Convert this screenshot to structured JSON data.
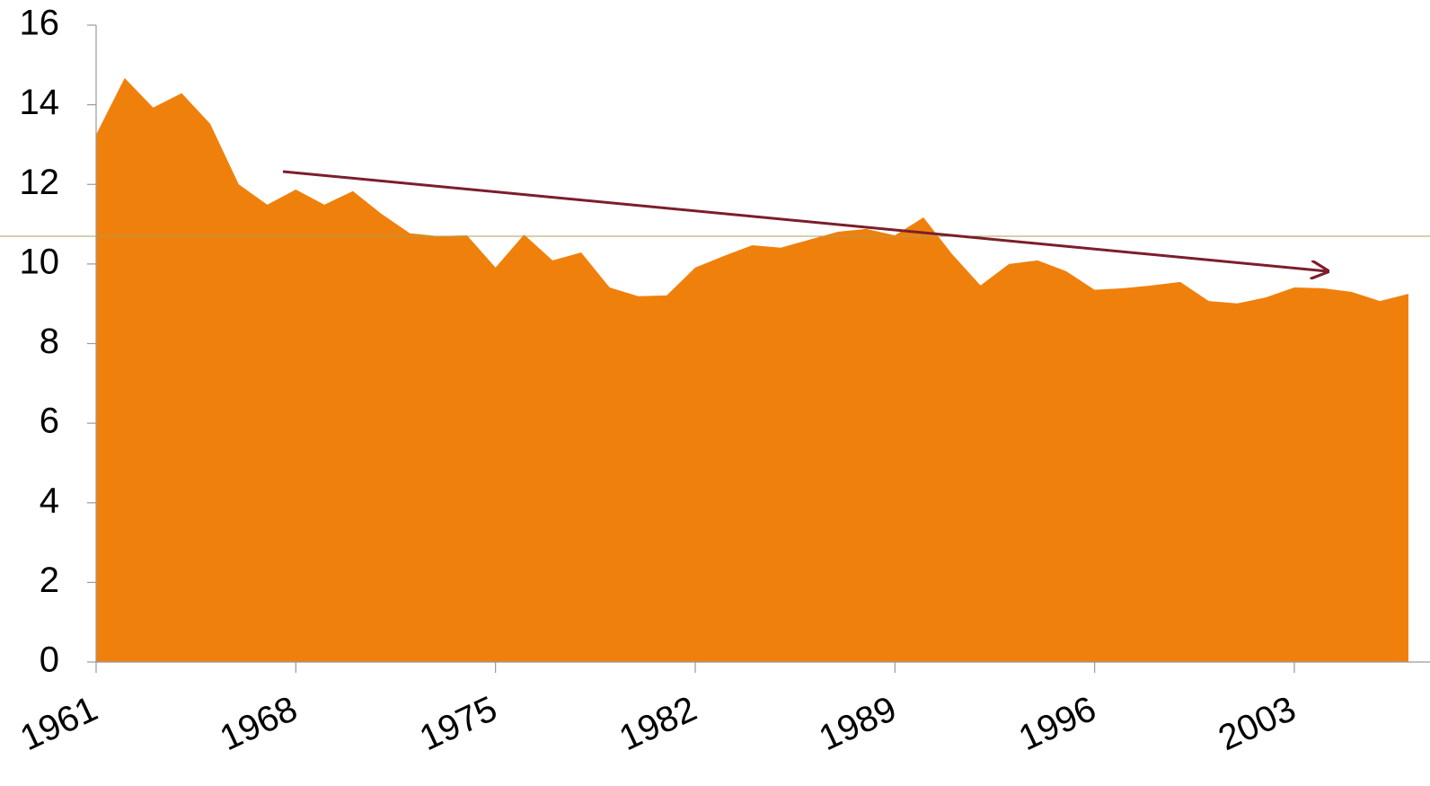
{
  "chart_data": {
    "type": "area",
    "color": "#f0800c",
    "grid": true,
    "x": [
      1961,
      1962,
      1963,
      1964,
      1965,
      1966,
      1967,
      1968,
      1969,
      1970,
      1971,
      1972,
      1973,
      1974,
      1975,
      1976,
      1977,
      1978,
      1979,
      1980,
      1981,
      1982,
      1983,
      1984,
      1985,
      1986,
      1987,
      1988,
      1989,
      1990,
      1991,
      1992,
      1993,
      1994,
      1995,
      1996,
      1997,
      1998,
      1999,
      2000,
      2001,
      2002,
      2003,
      2004,
      2005,
      2006,
      2007
    ],
    "values": [
      13.25,
      14.67,
      13.93,
      14.29,
      13.52,
      12.0,
      11.49,
      11.87,
      11.49,
      11.83,
      11.26,
      10.77,
      10.7,
      10.72,
      9.91,
      10.74,
      10.09,
      10.29,
      9.41,
      9.19,
      9.21,
      9.91,
      10.2,
      10.47,
      10.41,
      10.61,
      10.81,
      10.88,
      10.72,
      11.17,
      10.25,
      9.46,
      10.0,
      10.09,
      9.82,
      9.35,
      9.39,
      9.46,
      9.55,
      9.07,
      9.01,
      9.16,
      9.41,
      9.39,
      9.3,
      9.07,
      9.25
    ],
    "xlim": [
      1961,
      2007
    ],
    "xticks": [
      1961,
      1968,
      1975,
      1982,
      1989,
      1996,
      2003
    ],
    "ylim": [
      0,
      16
    ],
    "yticks": [
      0,
      2,
      4,
      6,
      8,
      10,
      12,
      14,
      16
    ]
  }
}
